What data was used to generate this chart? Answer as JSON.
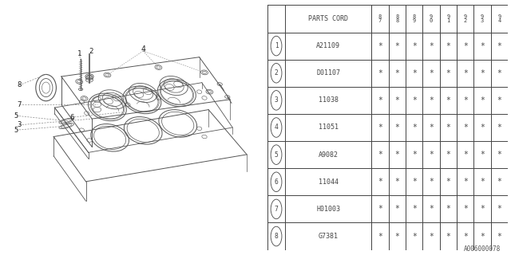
{
  "catalog_number": "A006000078",
  "bg_color": "#ffffff",
  "line_color": "#888888",
  "dark_line": "#555555",
  "table": {
    "header_cols": [
      "8\n7",
      "8\n8",
      "8\n9",
      "9\n0",
      "9\n1",
      "9\n2",
      "9\n3",
      "9\n4"
    ],
    "rows": [
      [
        "1",
        "A21109"
      ],
      [
        "2",
        "D01107"
      ],
      [
        "3",
        "11038"
      ],
      [
        "4",
        "11051"
      ],
      [
        "5",
        "A9082"
      ],
      [
        "6",
        "11044"
      ],
      [
        "7",
        "H01003"
      ],
      [
        "8",
        "G7381"
      ]
    ]
  }
}
